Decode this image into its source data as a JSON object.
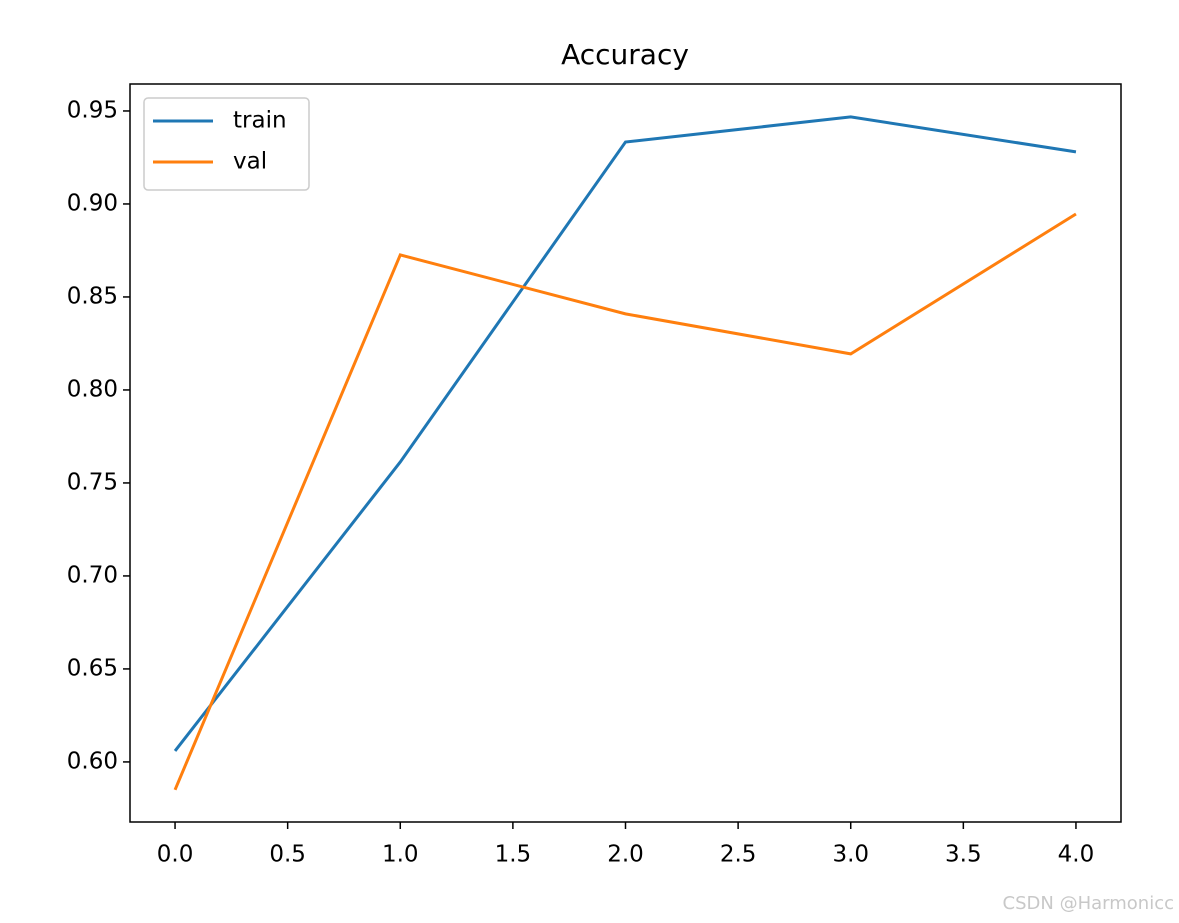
{
  "chart_data": {
    "type": "line",
    "title": "Accuracy",
    "x": [
      0,
      1,
      2,
      3,
      4
    ],
    "series": [
      {
        "name": "train",
        "color": "#1f77b4",
        "values": [
          0.6059,
          0.7613,
          0.9333,
          0.9468,
          0.928
        ]
      },
      {
        "name": "val",
        "color": "#ff7f0e",
        "values": [
          0.585,
          0.8726,
          0.8409,
          0.8194,
          0.8946
        ]
      }
    ],
    "xlim": [
      -0.2,
      4.2
    ],
    "ylim": [
      0.5677,
      0.9645
    ],
    "xticks": [
      {
        "value": 0,
        "label": "0.0"
      },
      0.5,
      {
        "value": 1,
        "label": "1.0"
      },
      1.5,
      {
        "value": 2,
        "label": "2.0"
      },
      2.5,
      {
        "value": 3,
        "label": "3.0"
      },
      3.5,
      {
        "value": 4,
        "label": "4.0"
      }
    ],
    "yticks": [
      {
        "value": 0.6,
        "label": "0.60"
      },
      0.65,
      {
        "value": 0.7,
        "label": "0.70"
      },
      0.75,
      {
        "value": 0.8,
        "label": "0.80"
      },
      0.85,
      {
        "value": 0.9,
        "label": "0.90"
      },
      0.95
    ],
    "grid": false,
    "legend": "upper-left",
    "watermark": "CSDN @Harmonicc"
  }
}
